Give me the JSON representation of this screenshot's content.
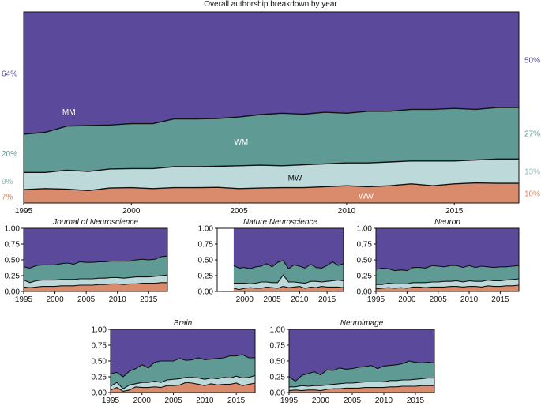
{
  "colors": {
    "MM": "#5b4a9b",
    "WM": "#5f9a94",
    "MW": "#bed9da",
    "WW": "#d98b6b",
    "line": "#111111"
  },
  "chart_data": [
    {
      "type": "area",
      "stacked": true,
      "title": "Overall authorship breakdown by year",
      "x": [
        1995,
        1996,
        1997,
        1998,
        1999,
        2000,
        2001,
        2002,
        2003,
        2004,
        2005,
        2006,
        2007,
        2008,
        2009,
        2010,
        2011,
        2012,
        2013,
        2014,
        2015,
        2016,
        2017,
        2018
      ],
      "xticks": [
        1995,
        2000,
        2005,
        2010,
        2015
      ],
      "xlim": [
        1995,
        2018
      ],
      "ylim": [
        0,
        1
      ],
      "series": [
        {
          "name": "WW",
          "values": [
            0.07,
            0.075,
            0.072,
            0.065,
            0.078,
            0.08,
            0.075,
            0.08,
            0.08,
            0.082,
            0.075,
            0.078,
            0.08,
            0.08,
            0.085,
            0.09,
            0.085,
            0.09,
            0.1,
            0.09,
            0.1,
            0.105,
            0.103,
            0.103
          ]
        },
        {
          "name": "MW",
          "values": [
            0.09,
            0.085,
            0.1,
            0.1,
            0.1,
            0.1,
            0.105,
            0.11,
            0.11,
            0.11,
            0.12,
            0.12,
            0.115,
            0.12,
            0.12,
            0.12,
            0.125,
            0.125,
            0.12,
            0.13,
            0.12,
            0.12,
            0.127,
            0.127
          ]
        },
        {
          "name": "WM",
          "values": [
            0.2,
            0.21,
            0.23,
            0.24,
            0.23,
            0.235,
            0.235,
            0.25,
            0.25,
            0.25,
            0.255,
            0.265,
            0.275,
            0.265,
            0.27,
            0.26,
            0.27,
            0.265,
            0.27,
            0.27,
            0.275,
            0.265,
            0.27,
            0.27
          ]
        },
        {
          "name": "MM",
          "values": [
            0.64,
            0.63,
            0.598,
            0.595,
            0.592,
            0.585,
            0.585,
            0.56,
            0.56,
            0.558,
            0.55,
            0.537,
            0.53,
            0.535,
            0.525,
            0.53,
            0.52,
            0.52,
            0.51,
            0.51,
            0.505,
            0.51,
            0.5,
            0.5
          ]
        }
      ],
      "labels": {
        "left": {
          "MM": "64%",
          "WM": "20%",
          "MW": "9%",
          "WW": "7%"
        },
        "right": {
          "MM": "50%",
          "WM": "27%",
          "MW": "13%",
          "WW": "10%"
        },
        "inner": {
          "MM": "MM",
          "WM": "WM",
          "MW": "MW",
          "WW": "WW"
        }
      }
    },
    {
      "type": "area",
      "stacked": true,
      "title": "Journal of Neuroscience",
      "x": [
        1995,
        1996,
        1997,
        1998,
        1999,
        2000,
        2001,
        2002,
        2003,
        2004,
        2005,
        2006,
        2007,
        2008,
        2009,
        2010,
        2011,
        2012,
        2013,
        2014,
        2015,
        2016,
        2017,
        2018
      ],
      "xticks": [
        1995,
        2000,
        2005,
        2010,
        2015
      ],
      "xlim": [
        1995,
        2018
      ],
      "yticks": [
        "0.00",
        "0.25",
        "0.50",
        "0.75",
        "1.00"
      ],
      "ylim": [
        0,
        1
      ],
      "series": [
        {
          "name": "WW",
          "values": [
            0.07,
            0.06,
            0.07,
            0.08,
            0.08,
            0.08,
            0.09,
            0.09,
            0.09,
            0.1,
            0.1,
            0.1,
            0.11,
            0.11,
            0.12,
            0.12,
            0.11,
            0.12,
            0.12,
            0.13,
            0.13,
            0.13,
            0.14,
            0.14
          ]
        },
        {
          "name": "MW",
          "values": [
            0.11,
            0.08,
            0.1,
            0.1,
            0.1,
            0.1,
            0.1,
            0.1,
            0.1,
            0.1,
            0.1,
            0.1,
            0.1,
            0.1,
            0.1,
            0.1,
            0.1,
            0.1,
            0.11,
            0.1,
            0.1,
            0.11,
            0.11,
            0.12
          ]
        },
        {
          "name": "WM",
          "values": [
            0.21,
            0.23,
            0.24,
            0.24,
            0.24,
            0.24,
            0.25,
            0.26,
            0.24,
            0.27,
            0.26,
            0.26,
            0.26,
            0.26,
            0.26,
            0.26,
            0.27,
            0.26,
            0.27,
            0.28,
            0.27,
            0.27,
            0.3,
            0.3
          ]
        },
        {
          "name": "MM",
          "values": [
            0.61,
            0.63,
            0.59,
            0.58,
            0.58,
            0.58,
            0.56,
            0.55,
            0.57,
            0.53,
            0.54,
            0.54,
            0.53,
            0.53,
            0.52,
            0.52,
            0.52,
            0.52,
            0.5,
            0.49,
            0.5,
            0.49,
            0.45,
            0.44
          ]
        }
      ]
    },
    {
      "type": "area",
      "stacked": true,
      "title": "Nature Neuroscience",
      "x": [
        1998,
        1999,
        2000,
        2001,
        2002,
        2003,
        2004,
        2005,
        2006,
        2007,
        2008,
        2009,
        2010,
        2011,
        2012,
        2013,
        2014,
        2015,
        2016,
        2017,
        2018
      ],
      "xticks": [
        2000,
        2005,
        2010,
        2015
      ],
      "xlim": [
        1995,
        2018
      ],
      "yticks": [
        "0.00",
        "0.25",
        "0.50",
        "0.75",
        "1.00"
      ],
      "ylim": [
        0,
        1
      ],
      "series": [
        {
          "name": "WW",
          "values": [
            0.05,
            0.03,
            0.05,
            0.06,
            0.05,
            0.05,
            0.07,
            0.06,
            0.05,
            0.08,
            0.06,
            0.07,
            0.08,
            0.05,
            0.07,
            0.06,
            0.08,
            0.07,
            0.07,
            0.07,
            0.06
          ]
        },
        {
          "name": "MW",
          "values": [
            0.08,
            0.1,
            0.08,
            0.06,
            0.08,
            0.1,
            0.08,
            0.08,
            0.09,
            0.18,
            0.09,
            0.08,
            0.06,
            0.08,
            0.09,
            0.1,
            0.07,
            0.09,
            0.1,
            0.11,
            0.11
          ]
        },
        {
          "name": "WM",
          "values": [
            0.28,
            0.24,
            0.25,
            0.24,
            0.26,
            0.25,
            0.29,
            0.25,
            0.32,
            0.23,
            0.21,
            0.27,
            0.26,
            0.24,
            0.27,
            0.22,
            0.22,
            0.25,
            0.3,
            0.23,
            0.27
          ]
        },
        {
          "name": "MM",
          "values": [
            0.59,
            0.63,
            0.62,
            0.64,
            0.61,
            0.6,
            0.56,
            0.61,
            0.54,
            0.51,
            0.64,
            0.58,
            0.6,
            0.63,
            0.57,
            0.62,
            0.63,
            0.59,
            0.53,
            0.59,
            0.56
          ]
        }
      ]
    },
    {
      "type": "area",
      "stacked": true,
      "title": "Neuron",
      "x": [
        1995,
        1996,
        1997,
        1998,
        1999,
        2000,
        2001,
        2002,
        2003,
        2004,
        2005,
        2006,
        2007,
        2008,
        2009,
        2010,
        2011,
        2012,
        2013,
        2014,
        2015,
        2016,
        2017,
        2018
      ],
      "xticks": [
        1995,
        2000,
        2005,
        2010,
        2015
      ],
      "xlim": [
        1995,
        2018
      ],
      "yticks": [
        "0.00",
        "0.25",
        "0.50",
        "0.75",
        "1.00"
      ],
      "ylim": [
        0,
        1
      ],
      "series": [
        {
          "name": "WW",
          "values": [
            0.04,
            0.05,
            0.06,
            0.05,
            0.06,
            0.05,
            0.07,
            0.07,
            0.06,
            0.07,
            0.07,
            0.07,
            0.08,
            0.08,
            0.07,
            0.08,
            0.08,
            0.07,
            0.09,
            0.08,
            0.08,
            0.09,
            0.09,
            0.1
          ]
        },
        {
          "name": "MW",
          "values": [
            0.07,
            0.06,
            0.07,
            0.07,
            0.06,
            0.07,
            0.07,
            0.07,
            0.08,
            0.08,
            0.08,
            0.09,
            0.08,
            0.09,
            0.08,
            0.09,
            0.08,
            0.09,
            0.09,
            0.09,
            0.09,
            0.09,
            0.1,
            0.1
          ]
        },
        {
          "name": "WM",
          "values": [
            0.24,
            0.26,
            0.23,
            0.21,
            0.22,
            0.21,
            0.24,
            0.24,
            0.23,
            0.26,
            0.25,
            0.23,
            0.25,
            0.24,
            0.23,
            0.24,
            0.22,
            0.24,
            0.21,
            0.21,
            0.22,
            0.21,
            0.21,
            0.21
          ]
        },
        {
          "name": "MM",
          "values": [
            0.65,
            0.63,
            0.64,
            0.67,
            0.66,
            0.67,
            0.62,
            0.62,
            0.63,
            0.59,
            0.6,
            0.61,
            0.59,
            0.59,
            0.62,
            0.59,
            0.62,
            0.6,
            0.61,
            0.62,
            0.61,
            0.61,
            0.6,
            0.59
          ]
        }
      ]
    },
    {
      "type": "area",
      "stacked": true,
      "title": "Brain",
      "x": [
        1995,
        1996,
        1997,
        1998,
        1999,
        2000,
        2001,
        2002,
        2003,
        2004,
        2005,
        2006,
        2007,
        2008,
        2009,
        2010,
        2011,
        2012,
        2013,
        2014,
        2015,
        2016,
        2017,
        2018
      ],
      "xticks": [
        1995,
        2000,
        2005,
        2010,
        2015
      ],
      "xlim": [
        1995,
        2018
      ],
      "yticks": [
        "0.00",
        "0.25",
        "0.50",
        "0.75",
        "1.00"
      ],
      "ylim": [
        0,
        1
      ],
      "series": [
        {
          "name": "WW",
          "values": [
            0.04,
            0.08,
            0.02,
            0.04,
            0.09,
            0.08,
            0.08,
            0.09,
            0.08,
            0.11,
            0.11,
            0.12,
            0.16,
            0.15,
            0.13,
            0.11,
            0.14,
            0.12,
            0.13,
            0.13,
            0.15,
            0.11,
            0.13,
            0.15
          ]
        },
        {
          "name": "MW",
          "values": [
            0.06,
            0.08,
            0.04,
            0.08,
            0.05,
            0.08,
            0.08,
            0.09,
            0.08,
            0.09,
            0.1,
            0.1,
            0.08,
            0.09,
            0.1,
            0.1,
            0.09,
            0.1,
            0.11,
            0.1,
            0.11,
            0.12,
            0.11,
            0.12
          ]
        },
        {
          "name": "WM",
          "values": [
            0.2,
            0.16,
            0.19,
            0.22,
            0.24,
            0.28,
            0.23,
            0.3,
            0.34,
            0.3,
            0.29,
            0.32,
            0.27,
            0.28,
            0.32,
            0.31,
            0.3,
            0.32,
            0.31,
            0.35,
            0.32,
            0.37,
            0.31,
            0.28
          ]
        },
        {
          "name": "MM",
          "values": [
            0.7,
            0.68,
            0.75,
            0.66,
            0.62,
            0.56,
            0.61,
            0.52,
            0.5,
            0.5,
            0.5,
            0.46,
            0.49,
            0.48,
            0.45,
            0.48,
            0.47,
            0.46,
            0.45,
            0.42,
            0.42,
            0.4,
            0.45,
            0.45
          ]
        }
      ]
    },
    {
      "type": "area",
      "stacked": true,
      "title": "Neuroimage",
      "x": [
        1995,
        1996,
        1997,
        1998,
        1999,
        2000,
        2001,
        2002,
        2003,
        2004,
        2005,
        2006,
        2007,
        2008,
        2009,
        2010,
        2011,
        2012,
        2013,
        2014,
        2015,
        2016,
        2017,
        2018
      ],
      "xticks": [
        1995,
        2000,
        2005,
        2010,
        2015
      ],
      "xlim": [
        1995,
        2018
      ],
      "yticks": [
        "0.00",
        "0.25",
        "0.50",
        "0.75",
        "1.00"
      ],
      "ylim": [
        0,
        1
      ],
      "series": [
        {
          "name": "WW",
          "values": [
            0.03,
            0.04,
            0.03,
            0.04,
            0.04,
            0.03,
            0.05,
            0.06,
            0.06,
            0.07,
            0.07,
            0.07,
            0.08,
            0.08,
            0.08,
            0.08,
            0.09,
            0.09,
            0.1,
            0.1,
            0.1,
            0.11,
            0.11,
            0.11
          ]
        },
        {
          "name": "MW",
          "values": [
            0.06,
            0.05,
            0.08,
            0.06,
            0.07,
            0.08,
            0.07,
            0.07,
            0.08,
            0.08,
            0.08,
            0.09,
            0.09,
            0.09,
            0.09,
            0.09,
            0.1,
            0.1,
            0.1,
            0.1,
            0.11,
            0.11,
            0.12,
            0.12
          ]
        },
        {
          "name": "WM",
          "values": [
            0.16,
            0.09,
            0.16,
            0.2,
            0.22,
            0.17,
            0.24,
            0.22,
            0.25,
            0.22,
            0.23,
            0.24,
            0.24,
            0.26,
            0.21,
            0.25,
            0.24,
            0.25,
            0.26,
            0.3,
            0.27,
            0.25,
            0.25,
            0.24
          ]
        },
        {
          "name": "MM",
          "values": [
            0.75,
            0.82,
            0.73,
            0.7,
            0.67,
            0.72,
            0.64,
            0.65,
            0.61,
            0.63,
            0.62,
            0.6,
            0.59,
            0.57,
            0.62,
            0.58,
            0.57,
            0.56,
            0.54,
            0.5,
            0.52,
            0.53,
            0.52,
            0.53
          ]
        }
      ]
    }
  ]
}
